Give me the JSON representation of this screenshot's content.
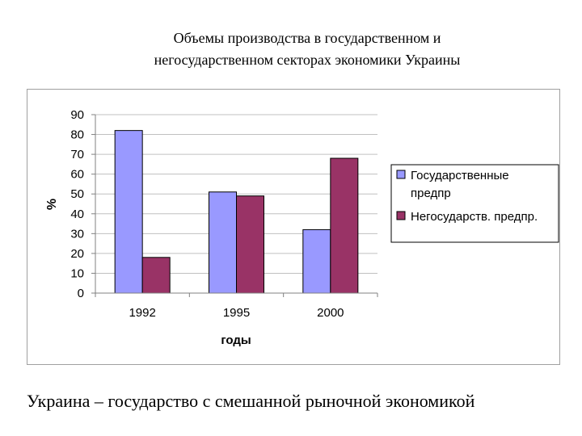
{
  "title": {
    "line1": "Объемы производства в государственном и",
    "line2": "негосударственном секторах экономики Украины"
  },
  "caption": "Украина – государство с смешанной рыночной экономикой",
  "colors": {
    "gov": "#9999ff",
    "nongov": "#993366",
    "grid": "#c0c0c0",
    "axis": "#808080",
    "text": "#000000"
  },
  "chart_data": {
    "type": "bar",
    "categories": [
      "1992",
      "1995",
      "2000"
    ],
    "series": [
      {
        "name": "Государственные предпр",
        "values": [
          82,
          51,
          32
        ]
      },
      {
        "name": "Негосударств. предпр.",
        "values": [
          18,
          49,
          68
        ]
      }
    ],
    "xlabel": "годы",
    "ylabel": "%",
    "ylim": [
      0,
      90
    ],
    "yticks": [
      0,
      10,
      20,
      30,
      40,
      50,
      60,
      70,
      80,
      90
    ],
    "grid": true,
    "legend_position": "right"
  },
  "legend": {
    "items": [
      {
        "line1": "Государственные",
        "line2": "предпр"
      },
      {
        "line1": "Негосударств. предпр.",
        "line2": ""
      }
    ]
  }
}
